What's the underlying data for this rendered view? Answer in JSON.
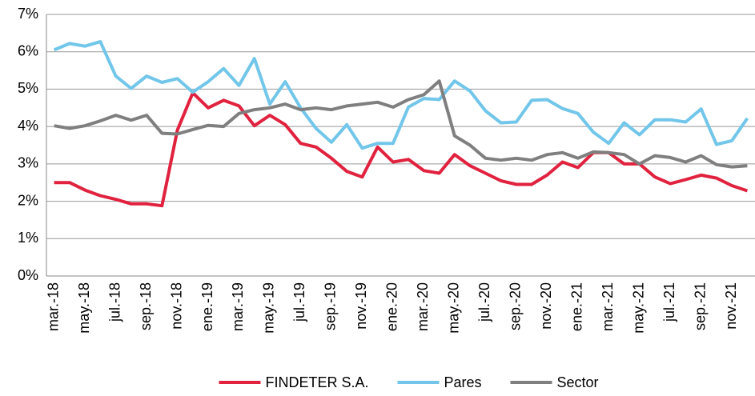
{
  "chart_data": {
    "type": "line",
    "categories": [
      "mar.-18",
      null,
      "may.-18",
      null,
      "jul.-18",
      null,
      "sep.-18",
      null,
      "nov.-18",
      null,
      "ene.-19",
      null,
      "mar.-19",
      null,
      "may.-19",
      null,
      "jul.-19",
      null,
      "sep.-19",
      null,
      "nov.-19",
      null,
      "ene.-20",
      null,
      "mar.-20",
      null,
      "may.-20",
      null,
      "jul.-20",
      null,
      "sep.-20",
      null,
      "nov.-20",
      null,
      "ene.-21",
      null,
      "mar.-21",
      null,
      "may.-21",
      null,
      "jul.-21",
      null,
      "sep.-21",
      null,
      "nov.-21",
      null
    ],
    "series": [
      {
        "name": "FINDETER S.A.",
        "color": "#e0223f",
        "values": [
          2.5,
          2.5,
          2.3,
          2.15,
          2.05,
          1.93,
          1.93,
          1.88,
          3.9,
          4.9,
          4.5,
          4.7,
          4.55,
          4.02,
          4.3,
          4.05,
          3.55,
          3.45,
          3.15,
          2.8,
          2.65,
          3.45,
          3.05,
          3.12,
          2.82,
          2.75,
          3.25,
          2.95,
          2.75,
          2.55,
          2.45,
          2.45,
          2.7,
          3.05,
          2.9,
          3.3,
          3.3,
          3.0,
          3.0,
          2.65,
          2.47,
          2.58,
          2.7,
          2.62,
          2.42,
          2.28
        ]
      },
      {
        "name": "Pares",
        "color": "#71c6ea",
        "values": [
          6.05,
          6.22,
          6.15,
          6.27,
          5.35,
          5.02,
          5.35,
          5.18,
          5.28,
          4.92,
          5.2,
          5.55,
          5.1,
          5.82,
          4.6,
          5.2,
          4.5,
          3.95,
          3.58,
          4.05,
          3.42,
          3.55,
          3.55,
          4.52,
          4.75,
          4.72,
          5.22,
          4.95,
          4.42,
          4.1,
          4.12,
          4.7,
          4.72,
          4.48,
          4.35,
          3.85,
          3.55,
          4.1,
          3.78,
          4.18,
          4.18,
          4.12,
          4.47,
          3.52,
          3.62,
          4.22
        ]
      },
      {
        "name": "Sector",
        "color": "#7f7f7f",
        "values": [
          4.02,
          3.95,
          4.02,
          4.15,
          4.3,
          4.17,
          4.3,
          3.82,
          3.8,
          3.92,
          4.03,
          4.0,
          4.35,
          4.45,
          4.5,
          4.6,
          4.45,
          4.5,
          4.45,
          4.55,
          4.6,
          4.65,
          4.52,
          4.72,
          4.85,
          5.22,
          3.75,
          3.5,
          3.15,
          3.1,
          3.15,
          3.1,
          3.25,
          3.3,
          3.15,
          3.32,
          3.3,
          3.25,
          3.0,
          3.22,
          3.17,
          3.05,
          3.22,
          2.98,
          2.92,
          2.95
        ]
      }
    ],
    "ylim": [
      0,
      7
    ],
    "yticks": [
      {
        "value": 0,
        "label": "0%"
      },
      {
        "value": 1,
        "label": "1%"
      },
      {
        "value": 2,
        "label": "2%"
      },
      {
        "value": 3,
        "label": "3%"
      },
      {
        "value": 4,
        "label": "4%"
      },
      {
        "value": 5,
        "label": "5%"
      },
      {
        "value": 6,
        "label": "6%"
      },
      {
        "value": 7,
        "label": "7%"
      }
    ],
    "grid": true,
    "legend": "bottom"
  }
}
